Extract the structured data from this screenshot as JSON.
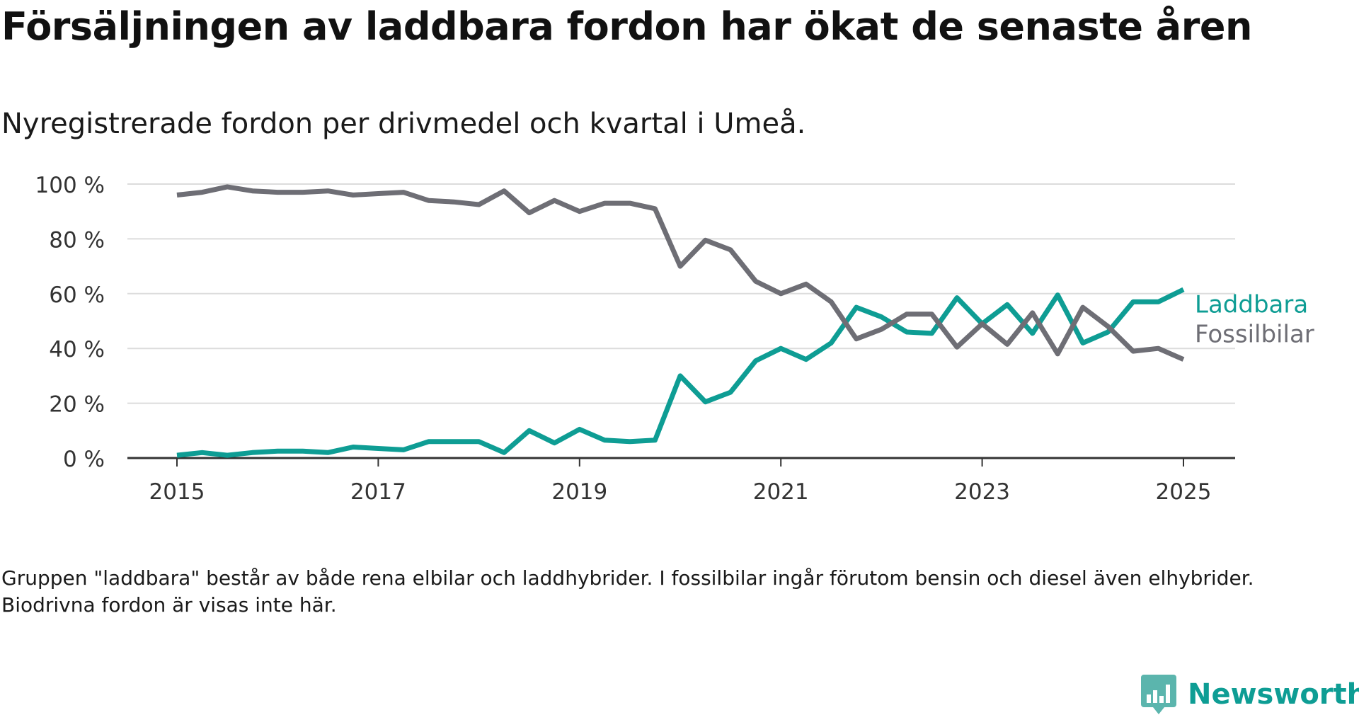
{
  "title": "Försäljningen av laddbara fordon har ökat de senaste åren",
  "subtitle": "Nyregistrerade fordon per drivmedel och kvartal i Umeå.",
  "note": "Gruppen \"laddbara\" består av både rena elbilar och laddhybrider. I fossilbilar ingår förutom bensin och diesel även elhybrider. Biodrivna fordon är visas inte här.",
  "brand": {
    "name": "Newsworthy",
    "icon": "newsworthy-logo-icon"
  },
  "chart_data": {
    "type": "line",
    "title": "Försäljningen av laddbara fordon har ökat de senaste åren",
    "subtitle": "Nyregistrerade fordon per drivmedel och kvartal i Umeå.",
    "xlabel": "",
    "ylabel": "",
    "x_ticks": [
      "2015",
      "2017",
      "2019",
      "2021",
      "2023",
      "2025"
    ],
    "y_ticks": [
      "0 %",
      "20 %",
      "40 %",
      "60 %",
      "80 %",
      "100 %"
    ],
    "ylim": [
      0,
      100
    ],
    "xlim": [
      "2015-01-01",
      "2025-04-01"
    ],
    "grid": "horizontal",
    "legend": "end-of-line labels, right",
    "x": [
      "2015-01-01",
      "2015-04-01",
      "2015-07-01",
      "2015-10-01",
      "2016-01-01",
      "2016-04-01",
      "2016-07-01",
      "2016-10-01",
      "2017-01-01",
      "2017-04-01",
      "2017-07-01",
      "2017-10-01",
      "2018-01-01",
      "2018-04-01",
      "2018-07-01",
      "2018-10-01",
      "2019-01-01",
      "2019-04-01",
      "2019-07-01",
      "2019-10-01",
      "2020-01-01",
      "2020-04-01",
      "2020-07-01",
      "2020-10-01",
      "2021-01-01",
      "2021-04-01",
      "2021-07-01",
      "2021-10-01",
      "2022-01-01",
      "2022-04-01",
      "2022-07-01",
      "2022-10-01",
      "2023-01-01",
      "2023-04-01",
      "2023-07-01",
      "2023-10-01",
      "2024-01-01",
      "2024-04-01",
      "2024-07-01",
      "2024-10-01",
      "2025-01-01"
    ],
    "series": [
      {
        "name": "Laddbara",
        "color": "#0e9d94",
        "values": [
          1,
          2,
          1,
          2,
          2.5,
          2.5,
          2,
          4,
          3.5,
          3,
          6,
          6,
          6,
          2,
          10,
          5.5,
          10.5,
          6.5,
          6,
          6.5,
          30,
          20.5,
          24,
          35.5,
          40,
          36,
          42,
          55,
          51.5,
          46,
          45.5,
          58.5,
          49,
          56,
          45.5,
          59.5,
          42,
          46,
          57,
          57,
          61.5
        ]
      },
      {
        "name": "Fossilbilar",
        "color": "#6e6e75",
        "values": [
          96,
          97,
          99,
          97.5,
          97,
          97,
          97.5,
          96,
          96.5,
          97,
          94,
          93.5,
          92.5,
          97.5,
          89.5,
          94,
          90,
          93,
          93,
          91,
          70,
          79.5,
          76,
          64.5,
          60,
          63.5,
          57,
          43.5,
          47,
          52.5,
          52.5,
          40.5,
          49,
          41.5,
          53,
          38,
          55,
          48,
          39,
          40,
          36
        ]
      }
    ]
  }
}
